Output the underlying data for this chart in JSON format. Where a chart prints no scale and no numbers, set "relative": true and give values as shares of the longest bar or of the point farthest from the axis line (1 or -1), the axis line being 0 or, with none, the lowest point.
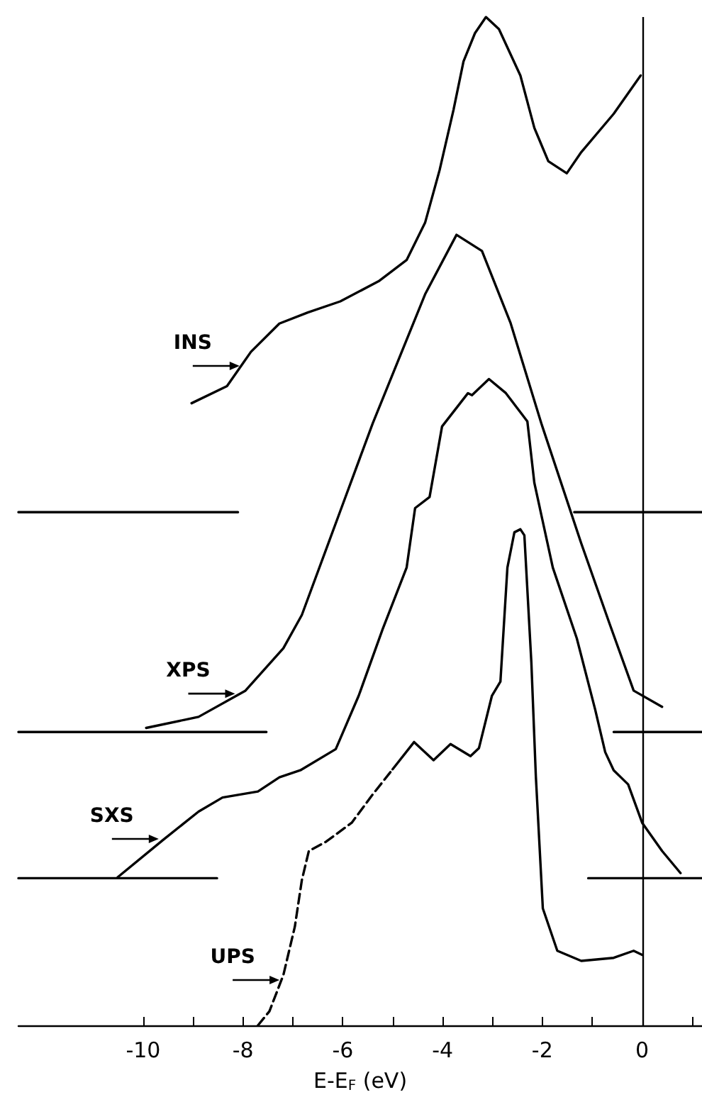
{
  "chart_data": {
    "type": "line",
    "relative": true,
    "xlabel": "E-E$_{F}$ (eV)",
    "xlim": [
      -12.5,
      1.2
    ],
    "xticks": [
      -10,
      {
        "value": -9,
        "label": null
      },
      -8,
      {
        "value": -7,
        "label": null
      },
      -6,
      {
        "value": -5,
        "label": null
      },
      -4,
      {
        "value": -3,
        "label": null
      },
      -2,
      {
        "value": -1,
        "label": null
      },
      0,
      {
        "value": 1,
        "label": null
      }
    ],
    "marker": "none",
    "line_style": "solid",
    "legend": false,
    "grid": false,
    "series": [
      {
        "color": "#000000",
        "x": [
          -9.03,
          -8.32,
          -7.84,
          -7.27,
          -6.7,
          -6.05,
          -5.28,
          -4.72,
          -4.35,
          -4.06,
          -3.78,
          -3.58,
          -3.35,
          -3.13,
          -2.87,
          -2.44,
          -2.16,
          -1.88,
          -1.51,
          -1.22,
          -0.57,
          -0.03
        ],
        "values": [
          0.617,
          0.634,
          0.668,
          0.696,
          0.707,
          0.718,
          0.738,
          0.759,
          0.796,
          0.848,
          0.908,
          0.956,
          0.984,
          1.0,
          0.988,
          0.942,
          0.89,
          0.857,
          0.845,
          0.866,
          0.904,
          0.942
        ]
      },
      {
        "color": "#000000",
        "x": [
          -9.94,
          -8.89,
          -7.95,
          -7.19,
          -6.82,
          -6.05,
          -5.4,
          -4.35,
          -3.72,
          -3.21,
          -2.64,
          -2.02,
          -1.22,
          -0.65,
          -0.17,
          0.4
        ],
        "values": [
          0.295,
          0.306,
          0.332,
          0.374,
          0.407,
          0.51,
          0.597,
          0.725,
          0.784,
          0.768,
          0.697,
          0.597,
          0.478,
          0.398,
          0.332,
          0.316
        ]
      },
      {
        "color": "#000000",
        "x": [
          -10.51,
          -9.6,
          -8.89,
          -8.41,
          -7.7,
          -7.27,
          -6.85,
          -6.14,
          -5.68,
          -5.2,
          -4.72,
          -4.55,
          -4.26,
          -4.01,
          -3.49,
          -3.41,
          -3.07,
          -2.73,
          -2.3,
          -2.16,
          -1.79,
          -1.31,
          -0.94,
          -0.74,
          -0.57,
          -0.28,
          0.0,
          0.4,
          0.77
        ],
        "values": [
          0.147,
          0.184,
          0.212,
          0.226,
          0.232,
          0.246,
          0.253,
          0.274,
          0.327,
          0.393,
          0.454,
          0.513,
          0.524,
          0.594,
          0.627,
          0.625,
          0.641,
          0.627,
          0.599,
          0.538,
          0.454,
          0.384,
          0.313,
          0.271,
          0.253,
          0.239,
          0.201,
          0.173,
          0.151
        ]
      },
      {
        "color": "#000000",
        "line_style": "dashed",
        "x": [
          -7.7,
          -7.47,
          -7.19,
          -6.96,
          -6.82,
          -6.68,
          -6.34,
          -5.82,
          -5.4,
          -5.0
        ],
        "values": [
          0.0,
          0.014,
          0.05,
          0.098,
          0.144,
          0.173,
          0.182,
          0.201,
          0.229,
          0.254
        ]
      },
      {
        "color": "#000000",
        "x": [
          -5.0,
          -4.57,
          -4.18,
          -3.84,
          -3.44,
          -3.27,
          -3.01,
          -2.84,
          -2.7,
          -2.56,
          -2.44,
          -2.36,
          -2.22,
          -2.13,
          -1.99,
          -1.7,
          -1.22,
          -0.57,
          -0.17,
          0.0
        ],
        "values": [
          0.254,
          0.281,
          0.263,
          0.279,
          0.267,
          0.275,
          0.327,
          0.341,
          0.454,
          0.489,
          0.492,
          0.486,
          0.36,
          0.247,
          0.116,
          0.074,
          0.064,
          0.067,
          0.074,
          0.07
        ]
      },
      {
        "color": "#000000",
        "x": [
          -12.5,
          -8.1,
          -4.7,
          -1.36,
          1.2
        ],
        "values": [
          0.509,
          0.509,
          null,
          0.509,
          0.509
        ]
      },
      {
        "color": "#000000",
        "x": [
          -12.5,
          -7.53,
          -3.5,
          -0.57,
          1.2
        ],
        "values": [
          0.291,
          0.291,
          null,
          0.291,
          0.291
        ]
      },
      {
        "color": "#000000",
        "x": [
          -12.5,
          -8.52,
          -4.8,
          -1.08,
          1.2
        ],
        "values": [
          0.146,
          0.146,
          null,
          0.146,
          0.146
        ]
      }
    ],
    "ref_lines": [
      {
        "axis": "x",
        "value": 0,
        "color": "#000000"
      }
    ],
    "annotations": [
      {
        "text": "INS",
        "x": -8.04,
        "y": 0.654
      },
      {
        "text": "XPS",
        "x": -8.13,
        "y": 0.329
      },
      {
        "text": "SXS",
        "x": -9.66,
        "y": 0.185
      },
      {
        "text": "UPS",
        "x": -7.24,
        "y": 0.045
      }
    ]
  }
}
